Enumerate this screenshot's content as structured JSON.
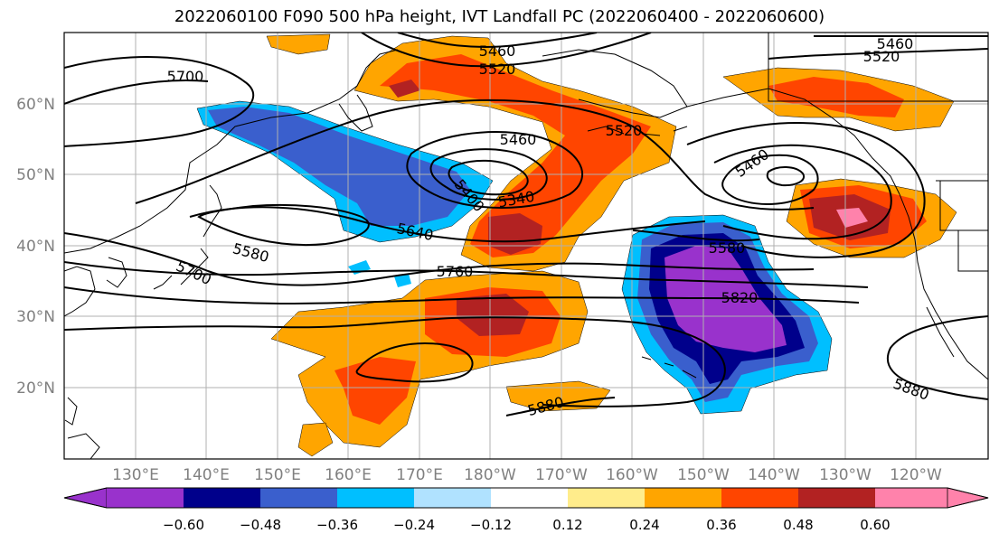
{
  "title": "2022060100 F090 500 hPa height, IVT Landfall PC (2022060400 - 2022060600)",
  "colors": {
    "land": "#000000",
    "grid": "#b0b0b0",
    "contour": "#000000",
    "tick_label": "#808080"
  },
  "map": {
    "lat_labels": [
      "60°N",
      "50°N",
      "40°N",
      "30°N",
      "20°N"
    ],
    "lon_labels": [
      "130°E",
      "140°E",
      "150°E",
      "160°E",
      "170°E",
      "180°W",
      "170°W",
      "160°W",
      "150°W",
      "140°W",
      "130°W",
      "120°W"
    ],
    "contour_labels": [
      {
        "text": "5700",
        "id": "c1"
      },
      {
        "text": "5460",
        "id": "c2"
      },
      {
        "text": "5520",
        "id": "c3"
      },
      {
        "text": "5460",
        "id": "c4"
      },
      {
        "text": "5520",
        "id": "c5"
      },
      {
        "text": "5460",
        "id": "c6"
      },
      {
        "text": "5520",
        "id": "c7"
      },
      {
        "text": "5460",
        "id": "c8"
      },
      {
        "text": "5400",
        "id": "c9"
      },
      {
        "text": "5340",
        "id": "c10"
      },
      {
        "text": "5640",
        "id": "c11"
      },
      {
        "text": "5580",
        "id": "c12"
      },
      {
        "text": "5700",
        "id": "c13"
      },
      {
        "text": "5760",
        "id": "c14"
      },
      {
        "text": "5580",
        "id": "c15"
      },
      {
        "text": "5820",
        "id": "c16"
      },
      {
        "text": "5880",
        "id": "c17"
      },
      {
        "text": "5880",
        "id": "c18"
      }
    ]
  },
  "colorbar": {
    "labels": [
      "−0.60",
      "−0.48",
      "−0.36",
      "−0.24",
      "−0.12",
      "0.12",
      "0.24",
      "0.36",
      "0.48",
      "0.60"
    ],
    "colors": [
      "#9932cc",
      "#00008b",
      "#3a5fcd",
      "#00bfff",
      "#b0e2ff",
      "#ffffff",
      "#ffec8b",
      "#ffa500",
      "#ff4500",
      "#b22222",
      "#ff82ab"
    ]
  }
}
